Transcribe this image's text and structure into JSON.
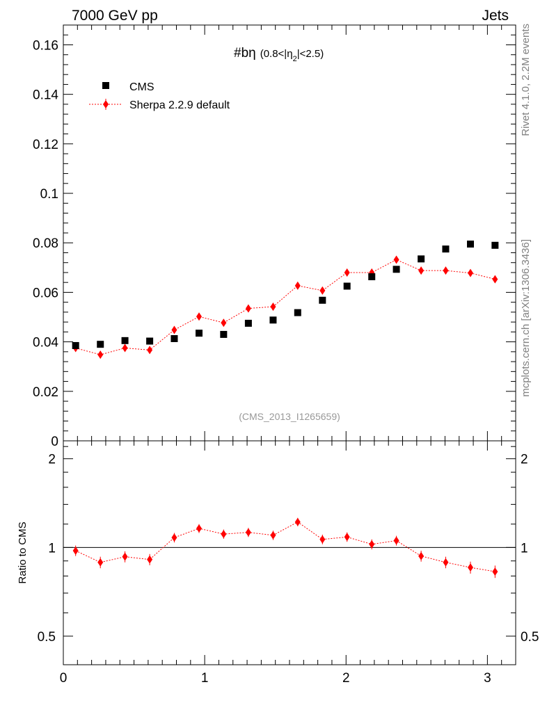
{
  "header": {
    "left": "7000 GeV pp",
    "right": "Jets"
  },
  "side_labels": {
    "rivet": "Rivet 4.1.0,  2.2M events",
    "mcplots": "mcplots.cern.ch [arXiv:1306.3436]"
  },
  "colors": {
    "data": "#000000",
    "mc": "#ff0000",
    "watermark": "#999999",
    "side": "#808080"
  },
  "chart_data": [
    {
      "type": "scatter",
      "title": "#bη",
      "title_suffix_pre": "(0.8<|η",
      "title_suffix_sub": "2",
      "title_suffix_post": "|<2.5)",
      "watermark": "(CMS_2013_I1265659)",
      "xlabel": "",
      "ylabel": "",
      "xlim": [
        0,
        3.2
      ],
      "ylim": [
        0,
        0.168
      ],
      "yticks": [
        0,
        0.02,
        0.04,
        0.06,
        0.08,
        0.1,
        0.12,
        0.14,
        0.16
      ],
      "ytick_labels": [
        "0",
        "0.02",
        "0.04",
        "0.06",
        "0.08",
        "0.1",
        "0.12",
        "0.14",
        "0.16"
      ],
      "legend": {
        "position": "top-left",
        "entries": [
          "CMS",
          "Sherpa 2.2.9 default"
        ]
      },
      "x": [
        0.087,
        0.262,
        0.436,
        0.611,
        0.785,
        0.96,
        1.134,
        1.309,
        1.484,
        1.658,
        1.833,
        2.007,
        2.182,
        2.356,
        2.531,
        2.705,
        2.88,
        3.054
      ],
      "series": [
        {
          "name": "CMS",
          "marker": "square",
          "values": [
            0.0385,
            0.039,
            0.0405,
            0.0403,
            0.0413,
            0.0435,
            0.043,
            0.0475,
            0.0488,
            0.0518,
            0.0568,
            0.0625,
            0.0663,
            0.0693,
            0.0735,
            0.0775,
            0.0795,
            0.079
          ]
        },
        {
          "name": "Sherpa 2.2.9 default",
          "marker": "diamond",
          "line": "dotted",
          "values": [
            0.0375,
            0.0348,
            0.0375,
            0.0367,
            0.0448,
            0.0502,
            0.0477,
            0.0535,
            0.0542,
            0.0627,
            0.0607,
            0.068,
            0.068,
            0.0732,
            0.0688,
            0.0688,
            0.0678,
            0.0653
          ],
          "errors": [
            0.0015,
            0.0015,
            0.0015,
            0.0015,
            0.0015,
            0.0015,
            0.0015,
            0.0015,
            0.0015,
            0.0015,
            0.0015,
            0.0015,
            0.0015,
            0.0015,
            0.0015,
            0.0015,
            0.0015,
            0.0015
          ]
        }
      ]
    },
    {
      "type": "scatter",
      "title": "",
      "xlabel": "",
      "ylabel": "Ratio to CMS",
      "xlim": [
        0,
        3.2
      ],
      "ylim": [
        0.4,
        2.3
      ],
      "yscale": "log",
      "yticks": [
        0.5,
        1,
        2
      ],
      "ytick_labels": [
        "0.5",
        "1",
        "2"
      ],
      "xticks": [
        0,
        1,
        2,
        3
      ],
      "xtick_labels": [
        "0",
        "1",
        "2",
        "3"
      ],
      "reference_line": 1,
      "x": [
        0.087,
        0.262,
        0.436,
        0.611,
        0.785,
        0.96,
        1.134,
        1.309,
        1.484,
        1.658,
        1.833,
        2.007,
        2.182,
        2.356,
        2.531,
        2.705,
        2.88,
        3.054
      ],
      "series": [
        {
          "name": "Sherpa 2.2.9 default",
          "marker": "diamond",
          "line": "dotted",
          "values": [
            0.975,
            0.89,
            0.93,
            0.91,
            1.08,
            1.16,
            1.11,
            1.125,
            1.1,
            1.22,
            1.065,
            1.085,
            1.025,
            1.055,
            0.935,
            0.89,
            0.855,
            0.828
          ],
          "errors": [
            0.04,
            0.04,
            0.04,
            0.04,
            0.04,
            0.04,
            0.04,
            0.04,
            0.04,
            0.04,
            0.04,
            0.04,
            0.04,
            0.04,
            0.04,
            0.04,
            0.04,
            0.04
          ]
        }
      ]
    }
  ]
}
